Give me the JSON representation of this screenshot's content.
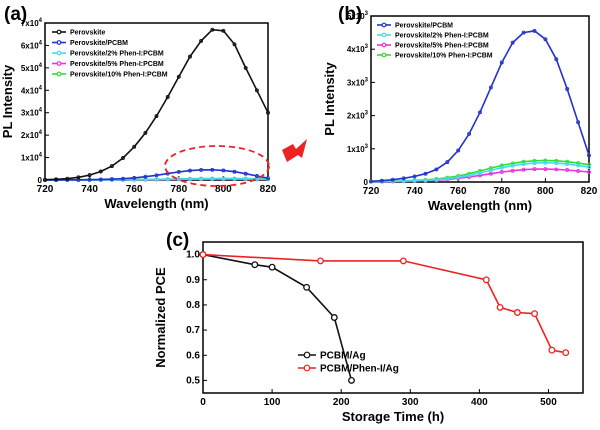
{
  "colors": {
    "black": "#111111",
    "blue": "#2233cc",
    "cyan": "#44ddee",
    "magenta": "#ee33dd",
    "green": "#33dd33",
    "red": "#ee2222",
    "arrow": "#ee2222"
  },
  "icons": {
    "arrow": "right-arrow-icon",
    "highlight": "dashed-ellipse-highlight"
  },
  "chart_data": [
    {
      "panel": "(a)",
      "type": "line",
      "xlabel": "Wavelength (nm)",
      "ylabel": "PL Intensity",
      "xlim": [
        720,
        820
      ],
      "ylim": [
        0,
        70000
      ],
      "xticks": [
        "720",
        "740",
        "760",
        "780",
        "800",
        "820"
      ],
      "yticks": [
        "0",
        "1x10^4",
        "2x10^4",
        "3x10^4",
        "4x10^4",
        "5x10^4",
        "6x10^4",
        "7x10^4"
      ],
      "legend_position": "top-left",
      "grid": false,
      "x": [
        720,
        725,
        730,
        735,
        740,
        745,
        750,
        755,
        760,
        765,
        770,
        775,
        780,
        785,
        790,
        795,
        800,
        805,
        810,
        815,
        820
      ],
      "series": [
        {
          "name": "Perovskite",
          "color": "#111111",
          "values": [
            150,
            300,
            600,
            1200,
            2200,
            3800,
            6200,
            9800,
            14800,
            21000,
            28500,
            37000,
            46000,
            55000,
            62000,
            67000,
            66500,
            60500,
            50000,
            40000,
            30000
          ]
        },
        {
          "name": "Perovskite/PCBM",
          "color": "#2233cc",
          "values": [
            20,
            40,
            70,
            110,
            170,
            250,
            380,
            600,
            950,
            1450,
            2100,
            2850,
            3600,
            4200,
            4500,
            4550,
            4300,
            3700,
            2800,
            1800,
            800
          ]
        },
        {
          "name": "Perovskite/2% Phen-I:PCBM",
          "color": "#44ddee",
          "values": [
            10,
            15,
            20,
            30,
            40,
            50,
            70,
            100,
            140,
            200,
            270,
            350,
            430,
            490,
            540,
            570,
            580,
            570,
            540,
            500,
            450
          ]
        },
        {
          "name": "Perovskite/5% Phen-I:PCBM",
          "color": "#ee33dd",
          "values": [
            8,
            10,
            15,
            20,
            30,
            40,
            55,
            75,
            110,
            150,
            200,
            250,
            300,
            340,
            370,
            390,
            390,
            380,
            360,
            330,
            300
          ]
        },
        {
          "name": "Perovskite/10% Phen-I:PCBM",
          "color": "#33dd33",
          "values": [
            12,
            18,
            25,
            35,
            50,
            65,
            90,
            130,
            180,
            250,
            330,
            420,
            500,
            560,
            610,
            640,
            650,
            640,
            610,
            570,
            520
          ]
        }
      ]
    },
    {
      "panel": "(b)",
      "type": "line",
      "xlabel": "Wavelength (nm)",
      "ylabel": "PL Intensity",
      "xlim": [
        720,
        820
      ],
      "ylim": [
        0,
        5000
      ],
      "xticks": [
        "720",
        "740",
        "760",
        "780",
        "800",
        "820"
      ],
      "yticks": [
        "0",
        "1x10^3",
        "2x10^3",
        "3x10^3",
        "4x10^3",
        "5x10^3"
      ],
      "legend_position": "top-left",
      "grid": false,
      "x": [
        720,
        725,
        730,
        735,
        740,
        745,
        750,
        755,
        760,
        765,
        770,
        775,
        780,
        785,
        790,
        795,
        800,
        805,
        810,
        815,
        820
      ],
      "series": [
        {
          "name": "Perovskite/PCBM",
          "color": "#2233cc",
          "values": [
            20,
            40,
            70,
            110,
            170,
            250,
            380,
            600,
            950,
            1450,
            2100,
            2850,
            3600,
            4200,
            4500,
            4550,
            4300,
            3700,
            2800,
            1800,
            800
          ]
        },
        {
          "name": "Perovskite/2% Phen-I:PCBM",
          "color": "#44ddee",
          "values": [
            10,
            15,
            20,
            30,
            40,
            50,
            70,
            100,
            140,
            200,
            270,
            350,
            430,
            490,
            540,
            570,
            580,
            570,
            540,
            500,
            450
          ]
        },
        {
          "name": "Perovskite/5% Phen-I:PCBM",
          "color": "#ee33dd",
          "values": [
            8,
            10,
            15,
            20,
            30,
            40,
            55,
            75,
            110,
            150,
            200,
            250,
            300,
            340,
            370,
            390,
            390,
            380,
            360,
            330,
            300
          ]
        },
        {
          "name": "Perovskite/10% Phen-I:PCBM",
          "color": "#33dd33",
          "values": [
            12,
            18,
            25,
            35,
            50,
            65,
            90,
            130,
            180,
            250,
            330,
            420,
            500,
            560,
            610,
            640,
            650,
            640,
            610,
            570,
            520
          ]
        }
      ]
    },
    {
      "panel": "(c)",
      "type": "line",
      "xlabel": "Storage Time (h)",
      "ylabel": "Normalized PCE",
      "xlim": [
        0,
        550
      ],
      "ylim": [
        0.45,
        1.05
      ],
      "xticks": [
        "0",
        "100",
        "200",
        "300",
        "400",
        "500"
      ],
      "yticks": [
        "0.5",
        "0.6",
        "0.7",
        "0.8",
        "0.9",
        "1.0"
      ],
      "legend_position": "bottom-right",
      "grid": false,
      "series": [
        {
          "name": "PCBM/Ag",
          "color": "#111111",
          "x": [
            0,
            75,
            100,
            150,
            190,
            215
          ],
          "values": [
            1.0,
            0.96,
            0.95,
            0.87,
            0.75,
            0.5
          ]
        },
        {
          "name": "PCBM/Phen-I/Ag",
          "color": "#ee2222",
          "x": [
            0,
            170,
            290,
            410,
            430,
            455,
            480,
            505,
            525
          ],
          "values": [
            1.0,
            0.975,
            0.975,
            0.9,
            0.79,
            0.77,
            0.765,
            0.62,
            0.61
          ]
        }
      ]
    }
  ]
}
